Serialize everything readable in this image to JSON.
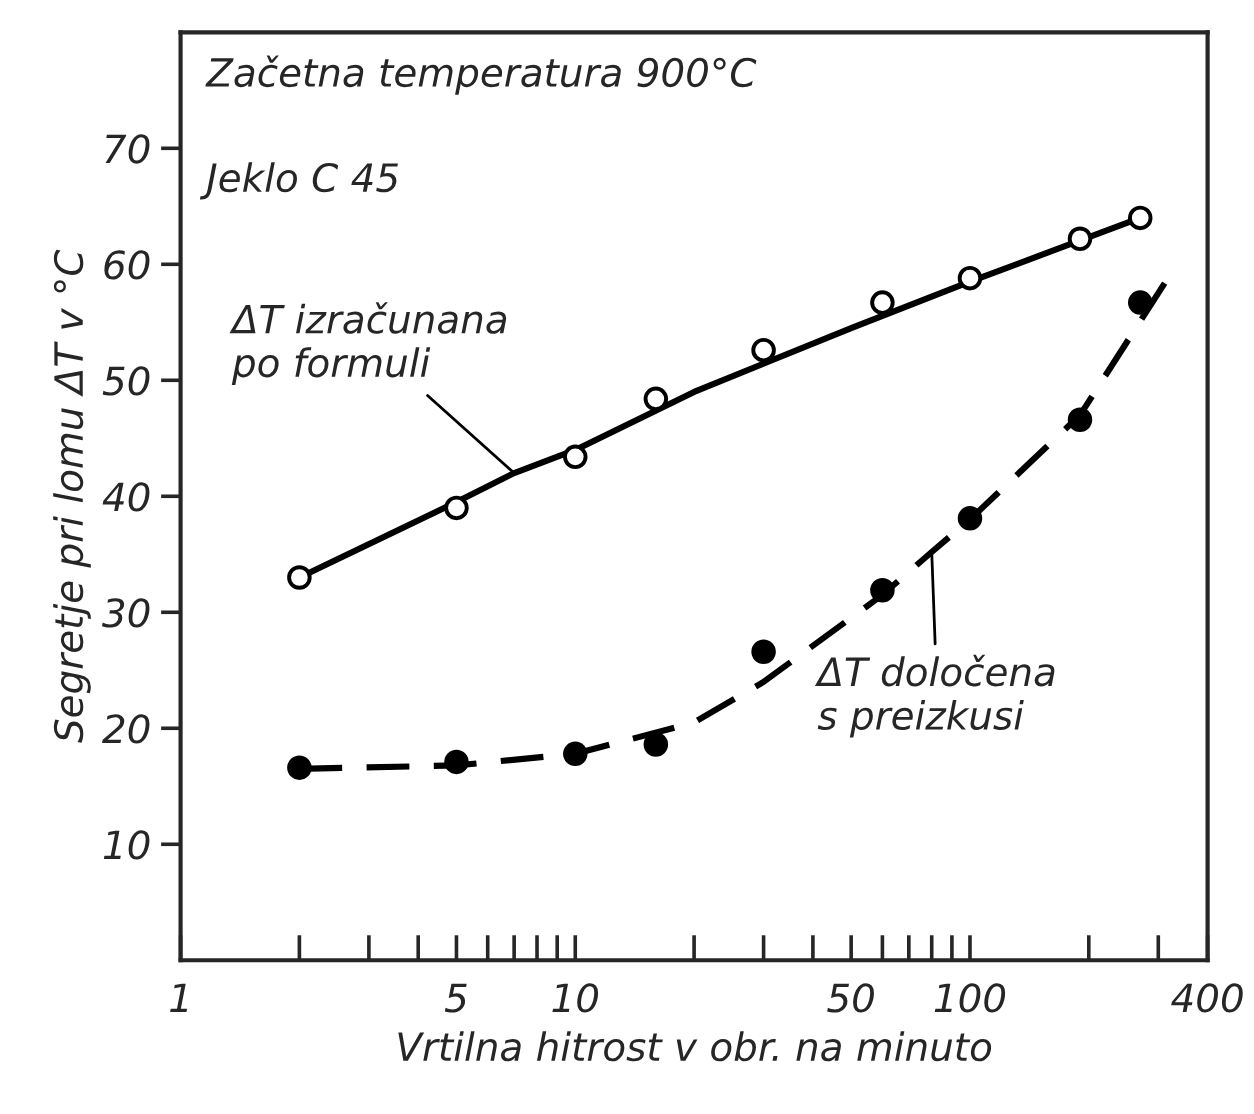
{
  "chart_data": {
    "type": "scatter",
    "xlabel": "Vrtilna hitrost v obr. na minuto",
    "ylabel": "Segretje pri lomu ΔT v °C",
    "log": "x",
    "grid": false,
    "xlim": [
      1,
      400
    ],
    "ylim": [
      0,
      80
    ],
    "xticks": [
      1,
      {
        "value": 2,
        "label": null
      },
      {
        "value": 3,
        "label": null
      },
      {
        "value": 4,
        "label": null
      },
      5,
      {
        "value": 6,
        "label": null
      },
      {
        "value": 7,
        "label": null
      },
      {
        "value": 8,
        "label": null
      },
      {
        "value": 9,
        "label": null
      },
      10,
      {
        "value": 20,
        "label": null
      },
      {
        "value": 30,
        "label": null
      },
      {
        "value": 40,
        "label": null
      },
      50,
      {
        "value": 60,
        "label": null
      },
      {
        "value": 70,
        "label": null
      },
      {
        "value": 80,
        "label": null
      },
      {
        "value": 90,
        "label": null
      },
      100,
      {
        "value": 200,
        "label": null
      },
      {
        "value": 300,
        "label": null
      },
      400
    ],
    "yticks": [
      10,
      20,
      30,
      40,
      50,
      60,
      70
    ],
    "series": [
      {
        "marker": "circle",
        "color": "#ffffff",
        "x": [
          2,
          5,
          10,
          16,
          30,
          60,
          100,
          190,
          270
        ],
        "values": [
          33,
          39,
          43.4,
          48.4,
          52.6,
          56.7,
          58.8,
          62.2,
          64
        ]
      },
      {
        "marker": "circle",
        "color": "#000000",
        "x": [
          2,
          5,
          10,
          16,
          30,
          60,
          100,
          190,
          270
        ],
        "values": [
          16.6,
          17.1,
          17.8,
          18.6,
          26.6,
          31.9,
          38.1,
          46.6,
          56.7
        ]
      },
      {
        "type": "line",
        "marker": "none",
        "line_style": "solid",
        "color": "#000000",
        "x": [
          2,
          5,
          7,
          10,
          20,
          50,
          100,
          270
        ],
        "values": [
          33,
          39.5,
          42,
          44,
          49,
          54.5,
          58.5,
          64
        ]
      },
      {
        "type": "line",
        "marker": "none",
        "line_style": "dashed",
        "color": "#000000",
        "x": [
          2,
          5,
          10,
          20,
          30,
          60,
          80,
          100,
          190,
          320
        ],
        "values": [
          16.5,
          16.8,
          17.8,
          20.5,
          24,
          31.5,
          35.2,
          38,
          47,
          59
        ]
      }
    ],
    "annotations": [
      "Začetna temperatura 900°C",
      "Jeklo C 45",
      {
        "text": "ΔT izračunana\npo formuli",
        "x": 7,
        "y": 42
      },
      {
        "text": "ΔT določena\ns preizkusi",
        "x": 80,
        "y": 35.2
      }
    ]
  }
}
